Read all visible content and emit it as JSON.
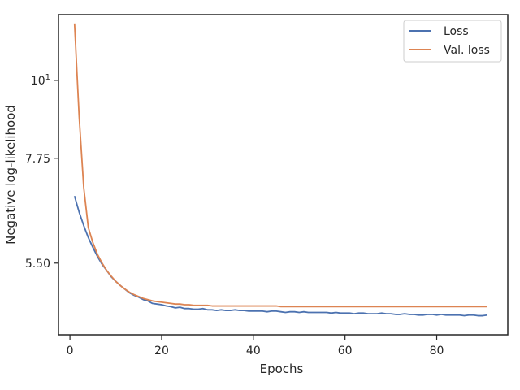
{
  "chart_data": {
    "type": "line",
    "xlabel": "Epochs",
    "ylabel": "Negative log-likelihood",
    "y_scale": "log",
    "xlim": [
      -2.5,
      95.5
    ],
    "ylim": [
      4.35,
      12.4
    ],
    "x_ticks": [
      {
        "value": 0,
        "label": "0"
      },
      {
        "value": 20,
        "label": "20"
      },
      {
        "value": 40,
        "label": "40"
      },
      {
        "value": 60,
        "label": "60"
      },
      {
        "value": 80,
        "label": "80"
      }
    ],
    "y_ticks": [
      {
        "value": 5.5,
        "label": "5.50",
        "sup": ""
      },
      {
        "value": 7.75,
        "label": "7.75",
        "sup": ""
      },
      {
        "value": 10,
        "label": "10",
        "sup": "1"
      }
    ],
    "legend_position": "top-right",
    "grid": false,
    "series": [
      {
        "name": "Loss",
        "color": "#4c72b0",
        "x": [
          1,
          2,
          3,
          4,
          5,
          6,
          7,
          8,
          9,
          10,
          11,
          12,
          13,
          14,
          15,
          16,
          17,
          18,
          19,
          20,
          21,
          22,
          23,
          24,
          25,
          26,
          27,
          28,
          29,
          30,
          31,
          32,
          33,
          34,
          35,
          36,
          37,
          38,
          39,
          40,
          41,
          42,
          43,
          44,
          45,
          46,
          47,
          48,
          49,
          50,
          51,
          52,
          53,
          54,
          55,
          56,
          57,
          58,
          59,
          60,
          61,
          62,
          63,
          64,
          65,
          66,
          67,
          68,
          69,
          70,
          71,
          72,
          73,
          74,
          75,
          76,
          77,
          78,
          79,
          80,
          81,
          82,
          83,
          84,
          85,
          86,
          87,
          88,
          89,
          90,
          91
        ],
        "values": [
          6.85,
          6.5,
          6.22,
          5.98,
          5.79,
          5.62,
          5.48,
          5.37,
          5.26,
          5.18,
          5.11,
          5.05,
          4.99,
          4.95,
          4.92,
          4.88,
          4.86,
          4.82,
          4.81,
          4.8,
          4.78,
          4.77,
          4.75,
          4.76,
          4.74,
          4.74,
          4.73,
          4.73,
          4.74,
          4.72,
          4.72,
          4.71,
          4.72,
          4.71,
          4.71,
          4.72,
          4.71,
          4.71,
          4.7,
          4.7,
          4.7,
          4.7,
          4.69,
          4.7,
          4.7,
          4.69,
          4.68,
          4.69,
          4.69,
          4.68,
          4.69,
          4.68,
          4.68,
          4.68,
          4.68,
          4.68,
          4.67,
          4.68,
          4.67,
          4.67,
          4.67,
          4.66,
          4.67,
          4.67,
          4.66,
          4.66,
          4.66,
          4.67,
          4.66,
          4.66,
          4.65,
          4.65,
          4.66,
          4.65,
          4.65,
          4.64,
          4.64,
          4.65,
          4.65,
          4.64,
          4.65,
          4.64,
          4.64,
          4.64,
          4.64,
          4.63,
          4.64,
          4.64,
          4.63,
          4.63,
          4.64
        ]
      },
      {
        "name": "Val. loss",
        "color": "#dd8452",
        "x": [
          1,
          2,
          3,
          4,
          5,
          6,
          7,
          8,
          9,
          10,
          11,
          12,
          13,
          14,
          15,
          16,
          17,
          18,
          19,
          20,
          21,
          22,
          23,
          24,
          25,
          26,
          27,
          28,
          29,
          30,
          31,
          32,
          33,
          34,
          35,
          36,
          37,
          38,
          39,
          40,
          41,
          42,
          43,
          44,
          45,
          46,
          47,
          48,
          49,
          50,
          51,
          52,
          53,
          54,
          55,
          56,
          57,
          58,
          59,
          60,
          61,
          62,
          63,
          64,
          65,
          66,
          67,
          68,
          69,
          70,
          71,
          72,
          73,
          74,
          75,
          76,
          77,
          78,
          79,
          80,
          81,
          82,
          83,
          84,
          85,
          86,
          87,
          88,
          89,
          90,
          91
        ],
        "values": [
          12.05,
          8.9,
          7.05,
          6.18,
          5.88,
          5.66,
          5.5,
          5.37,
          5.27,
          5.18,
          5.11,
          5.05,
          5.0,
          4.96,
          4.93,
          4.9,
          4.88,
          4.86,
          4.85,
          4.84,
          4.83,
          4.82,
          4.81,
          4.81,
          4.8,
          4.8,
          4.79,
          4.79,
          4.79,
          4.79,
          4.78,
          4.78,
          4.78,
          4.78,
          4.78,
          4.78,
          4.78,
          4.78,
          4.78,
          4.78,
          4.78,
          4.78,
          4.78,
          4.78,
          4.78,
          4.77,
          4.77,
          4.77,
          4.77,
          4.77,
          4.77,
          4.77,
          4.77,
          4.77,
          4.77,
          4.77,
          4.77,
          4.77,
          4.77,
          4.77,
          4.77,
          4.77,
          4.77,
          4.77,
          4.77,
          4.77,
          4.77,
          4.77,
          4.77,
          4.77,
          4.77,
          4.77,
          4.77,
          4.77,
          4.77,
          4.77,
          4.77,
          4.77,
          4.77,
          4.77,
          4.77,
          4.77,
          4.77,
          4.77,
          4.77,
          4.77,
          4.77,
          4.77,
          4.77,
          4.77,
          4.77
        ]
      }
    ]
  }
}
